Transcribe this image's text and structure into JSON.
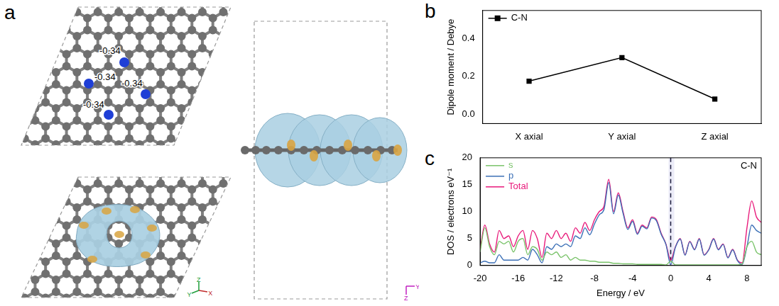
{
  "panel_a": {
    "letter": "a",
    "charges": [
      -0.34,
      -0.34,
      -0.34,
      -0.34
    ],
    "axes_views": [
      [
        "Z",
        "Y",
        "X"
      ],
      [
        "Y",
        "Z"
      ]
    ]
  },
  "chart_data": [
    {
      "letter": "b",
      "type": "line",
      "categories": [
        "X axial",
        "Y axial",
        "Z axial"
      ],
      "series": [
        {
          "name": "C-N",
          "color": "#000000",
          "marker": "square",
          "values": [
            0.175,
            0.3,
            0.08
          ]
        }
      ],
      "y_label": "Dipole moment / Debye",
      "ylim": [
        -0.05,
        0.55
      ],
      "yticks": [
        {
          "value": 0,
          "label": "0.0"
        },
        {
          "value": 0.2,
          "label": "0.2"
        },
        {
          "value": 0.4,
          "label": "0.4"
        }
      ],
      "legend": "upper left",
      "grid": false
    },
    {
      "letter": "c",
      "type": "line",
      "x": [
        -20,
        -19.5,
        -19,
        -18.5,
        -18,
        -17.5,
        -17,
        -16.5,
        -16,
        -15.5,
        -15,
        -14.5,
        -14,
        -13.5,
        -13,
        -12.5,
        -12,
        -11.5,
        -11,
        -10.5,
        -10,
        -9.5,
        -9,
        -8.5,
        -8,
        -7.5,
        -7,
        -6.5,
        -6,
        -5.5,
        -5,
        -4.5,
        -4,
        -3.5,
        -3,
        -2.5,
        -2,
        -1.5,
        -1,
        -0.5,
        0,
        0.5,
        1,
        1.5,
        2,
        2.5,
        3,
        3.5,
        4,
        4.5,
        5,
        5.5,
        6,
        6.5,
        7,
        7.5,
        8,
        8.5,
        9,
        9.5
      ],
      "series": [
        {
          "name": "s",
          "color": "#7ac36a",
          "values": [
            2.5,
            7,
            3.5,
            2,
            4.5,
            4,
            4.5,
            2.5,
            4.5,
            5,
            2,
            3.5,
            3,
            1,
            2.5,
            2,
            2.5,
            1.5,
            2,
            1,
            1.5,
            1,
            1,
            0.8,
            0.8,
            0.6,
            0.6,
            0.6,
            0.4,
            0.4,
            0.3,
            0.3,
            0.3,
            0.2,
            0.2,
            0.2,
            0.2,
            0.2,
            0.2,
            0.1,
            0.8,
            0.1,
            0.1,
            0.1,
            0.1,
            0.1,
            0.1,
            0.1,
            0.1,
            0.1,
            0.1,
            0.1,
            0.1,
            0.1,
            0.1,
            0.3,
            3.5,
            4.5,
            2.5,
            2
          ]
        },
        {
          "name": "p",
          "color": "#3b6fb6",
          "values": [
            0.5,
            0.8,
            0.5,
            0.5,
            2,
            1,
            1,
            1,
            1,
            1.5,
            1,
            3,
            2,
            0.5,
            3.5,
            3,
            4,
            3.5,
            4,
            3.5,
            5.5,
            5,
            7,
            5.7,
            7.7,
            9.4,
            10.4,
            15.4,
            9.6,
            13.1,
            9.7,
            6.7,
            8.2,
            5.8,
            7.3,
            6.8,
            8.8,
            8.3,
            5.8,
            3.9,
            0.2,
            3.4,
            4.9,
            1.9,
            4.4,
            2.9,
            4.9,
            1.9,
            2.9,
            4.9,
            2.9,
            3.9,
            1.4,
            2.9,
            0.9,
            0.2,
            3.5,
            7.5,
            6.5,
            6
          ]
        },
        {
          "name": "Total",
          "color": "#e8197a",
          "values": [
            3,
            7.5,
            4,
            2.5,
            6.5,
            5,
            5.5,
            3.5,
            5.5,
            6.5,
            3,
            6.5,
            5,
            1.5,
            6,
            5,
            6.5,
            5,
            6,
            4.5,
            7,
            6,
            8,
            6.5,
            8.5,
            10,
            11,
            16,
            10,
            13.5,
            10,
            7,
            8.5,
            6,
            7.5,
            7,
            9,
            8.5,
            6,
            4,
            1,
            3.5,
            5,
            2,
            4.5,
            3,
            5,
            2,
            3,
            5,
            3,
            4,
            1.5,
            3,
            1,
            0.5,
            7,
            12,
            9,
            8
          ]
        }
      ],
      "x_label": "Energy / eV",
      "y_label": "DOS / electrons eV⁻¹",
      "xlim": [
        -20,
        9.5
      ],
      "xticks": [
        -20,
        -16,
        -12,
        -8,
        -4,
        0,
        4,
        8
      ],
      "ylim": [
        0,
        20
      ],
      "yticks": [
        0,
        5,
        10,
        15,
        20
      ],
      "vline": 0,
      "annotation": "C-N",
      "legend": "upper left",
      "grid": false
    }
  ]
}
